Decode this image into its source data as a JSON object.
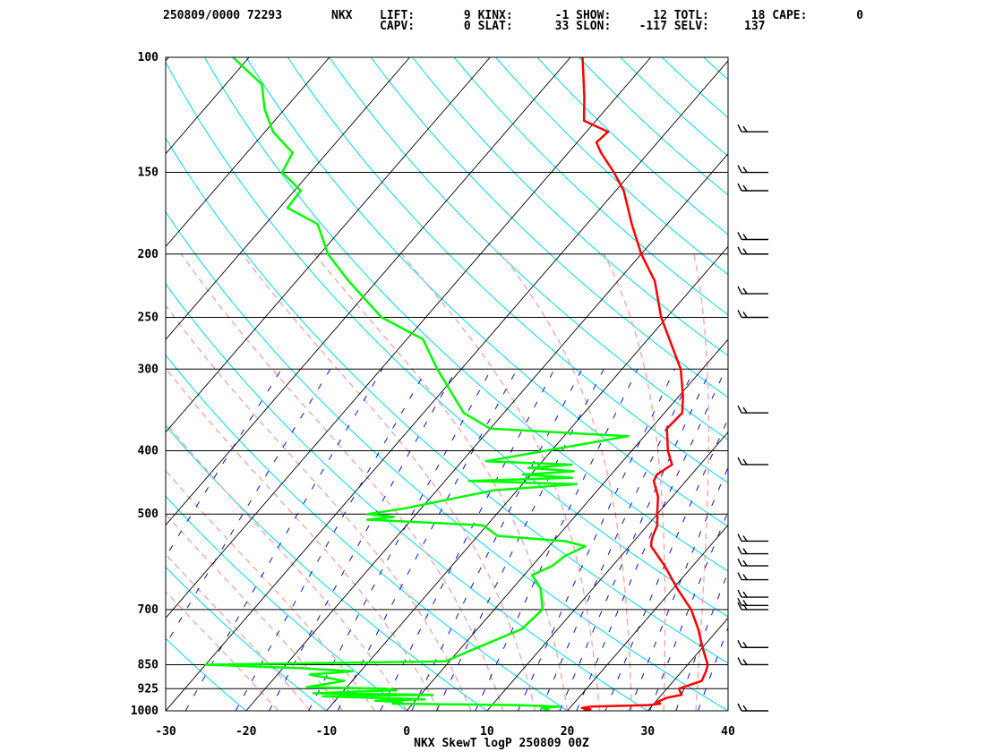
{
  "header": {
    "line1_left": "250809/0000 72293",
    "station": "NKX",
    "line1_params": "LIFT:       9 KINX:      -1 SHOW:      12 TOTL:      18 CAPE:       0",
    "line2_params": "CAPV:       0 SLAT:      33 SLON:    -117 SELV:     137"
  },
  "chart_data": {
    "type": "line",
    "title": "NKX SkewT logP 250809 00Z",
    "xlabel": "",
    "ylabel": "",
    "xlim": [
      -30,
      40
    ],
    "ylim": [
      1000,
      100
    ],
    "y_scale": "log",
    "x_ticks": [
      "-30",
      "-20",
      "-10",
      "0",
      "10",
      "20",
      "30",
      "40"
    ],
    "y_ticks": [
      "100",
      "150",
      "200",
      "250",
      "300",
      "400",
      "500",
      "700",
      "850",
      "925",
      "1000"
    ],
    "grid": true,
    "series": [
      {
        "name": "",
        "color": "#ff0000",
        "points": [
          [
            1000,
            22.0
          ],
          [
            995,
            22.7
          ],
          [
            990,
            21.5
          ],
          [
            985,
            22.5
          ],
          [
            980,
            29.5
          ],
          [
            975,
            30.8
          ],
          [
            970,
            30.2
          ],
          [
            955,
            31.0
          ],
          [
            945,
            32.5
          ],
          [
            925,
            31.5
          ],
          [
            900,
            33.5
          ],
          [
            870,
            33.0
          ],
          [
            850,
            32.5
          ],
          [
            800,
            30.0
          ],
          [
            750,
            27.5
          ],
          [
            700,
            24.5
          ],
          [
            650,
            20.5
          ],
          [
            600,
            16.5
          ],
          [
            560,
            12.7
          ],
          [
            550,
            12.2
          ],
          [
            540,
            11.8
          ],
          [
            520,
            11.2
          ],
          [
            500,
            10.0
          ],
          [
            470,
            8.2
          ],
          [
            445,
            6.0
          ],
          [
            435,
            5.7
          ],
          [
            420,
            6.5
          ],
          [
            415,
            6.0
          ],
          [
            400,
            4.5
          ],
          [
            370,
            2.0
          ],
          [
            350,
            2.2
          ],
          [
            330,
            0.5
          ],
          [
            300,
            -2.7
          ],
          [
            250,
            -10.7
          ],
          [
            220,
            -15.4
          ],
          [
            200,
            -20.0
          ],
          [
            180,
            -24.4
          ],
          [
            160,
            -29.0
          ],
          [
            150,
            -32.2
          ],
          [
            140,
            -35.9
          ],
          [
            135,
            -37.6
          ],
          [
            130,
            -37.3
          ],
          [
            125,
            -41.5
          ],
          [
            115,
            -44.0
          ],
          [
            100,
            -48.5
          ]
        ]
      },
      {
        "name": "",
        "color": "#00ff00",
        "points": [
          [
            1000,
            17.0
          ],
          [
            995,
            17.5
          ],
          [
            990,
            16.5
          ],
          [
            985,
            18.5
          ],
          [
            980,
            13.0
          ],
          [
            975,
            -2.5
          ],
          [
            970,
            -1.5
          ],
          [
            965,
            -5.0
          ],
          [
            960,
            1.0
          ],
          [
            955,
            -6.0
          ],
          [
            950,
            -12.0
          ],
          [
            945,
            1.5
          ],
          [
            940,
            -13.5
          ],
          [
            930,
            -3.5
          ],
          [
            925,
            -5.0
          ],
          [
            920,
            -15.0
          ],
          [
            900,
            -11.0
          ],
          [
            880,
            -16.0
          ],
          [
            870,
            -11.0
          ],
          [
            860,
            -18.0
          ],
          [
            850,
            -30.0
          ],
          [
            840,
            -0.5
          ],
          [
            800,
            2.0
          ],
          [
            750,
            5.5
          ],
          [
            700,
            6.0
          ],
          [
            650,
            3.5
          ],
          [
            620,
            1.0
          ],
          [
            600,
            2.5
          ],
          [
            580,
            3.0
          ],
          [
            560,
            4.5
          ],
          [
            550,
            1.5
          ],
          [
            540,
            -7.5
          ],
          [
            520,
            -10.5
          ],
          [
            510,
            -25.5
          ],
          [
            505,
            -22.5
          ],
          [
            500,
            -26.0
          ],
          [
            490,
            -22.0
          ],
          [
            460,
            -13.0
          ],
          [
            450,
            -3.3
          ],
          [
            445,
            -17.0
          ],
          [
            440,
            -4.5
          ],
          [
            435,
            -11.0
          ],
          [
            430,
            -5.0
          ],
          [
            425,
            -11.0
          ],
          [
            420,
            -6.0
          ],
          [
            415,
            -17.0
          ],
          [
            380,
            -2.0
          ],
          [
            370,
            -20.0
          ],
          [
            350,
            -25.0
          ],
          [
            300,
            -33.0
          ],
          [
            270,
            -38.0
          ],
          [
            250,
            -45.5
          ],
          [
            220,
            -53.5
          ],
          [
            200,
            -59.0
          ],
          [
            180,
            -63.5
          ],
          [
            170,
            -69.0
          ],
          [
            160,
            -69.2
          ],
          [
            150,
            -73.5
          ],
          [
            140,
            -74.3
          ],
          [
            130,
            -79.0
          ],
          [
            120,
            -82.5
          ],
          [
            110,
            -85.5
          ],
          [
            100,
            -92.0
          ]
        ]
      }
    ],
    "wind_barbs_pressure": [
      1000,
      850,
      800,
      700,
      690,
      670,
      630,
      600,
      575,
      550,
      420,
      350,
      250,
      230,
      200,
      190,
      160,
      150,
      130
    ]
  }
}
